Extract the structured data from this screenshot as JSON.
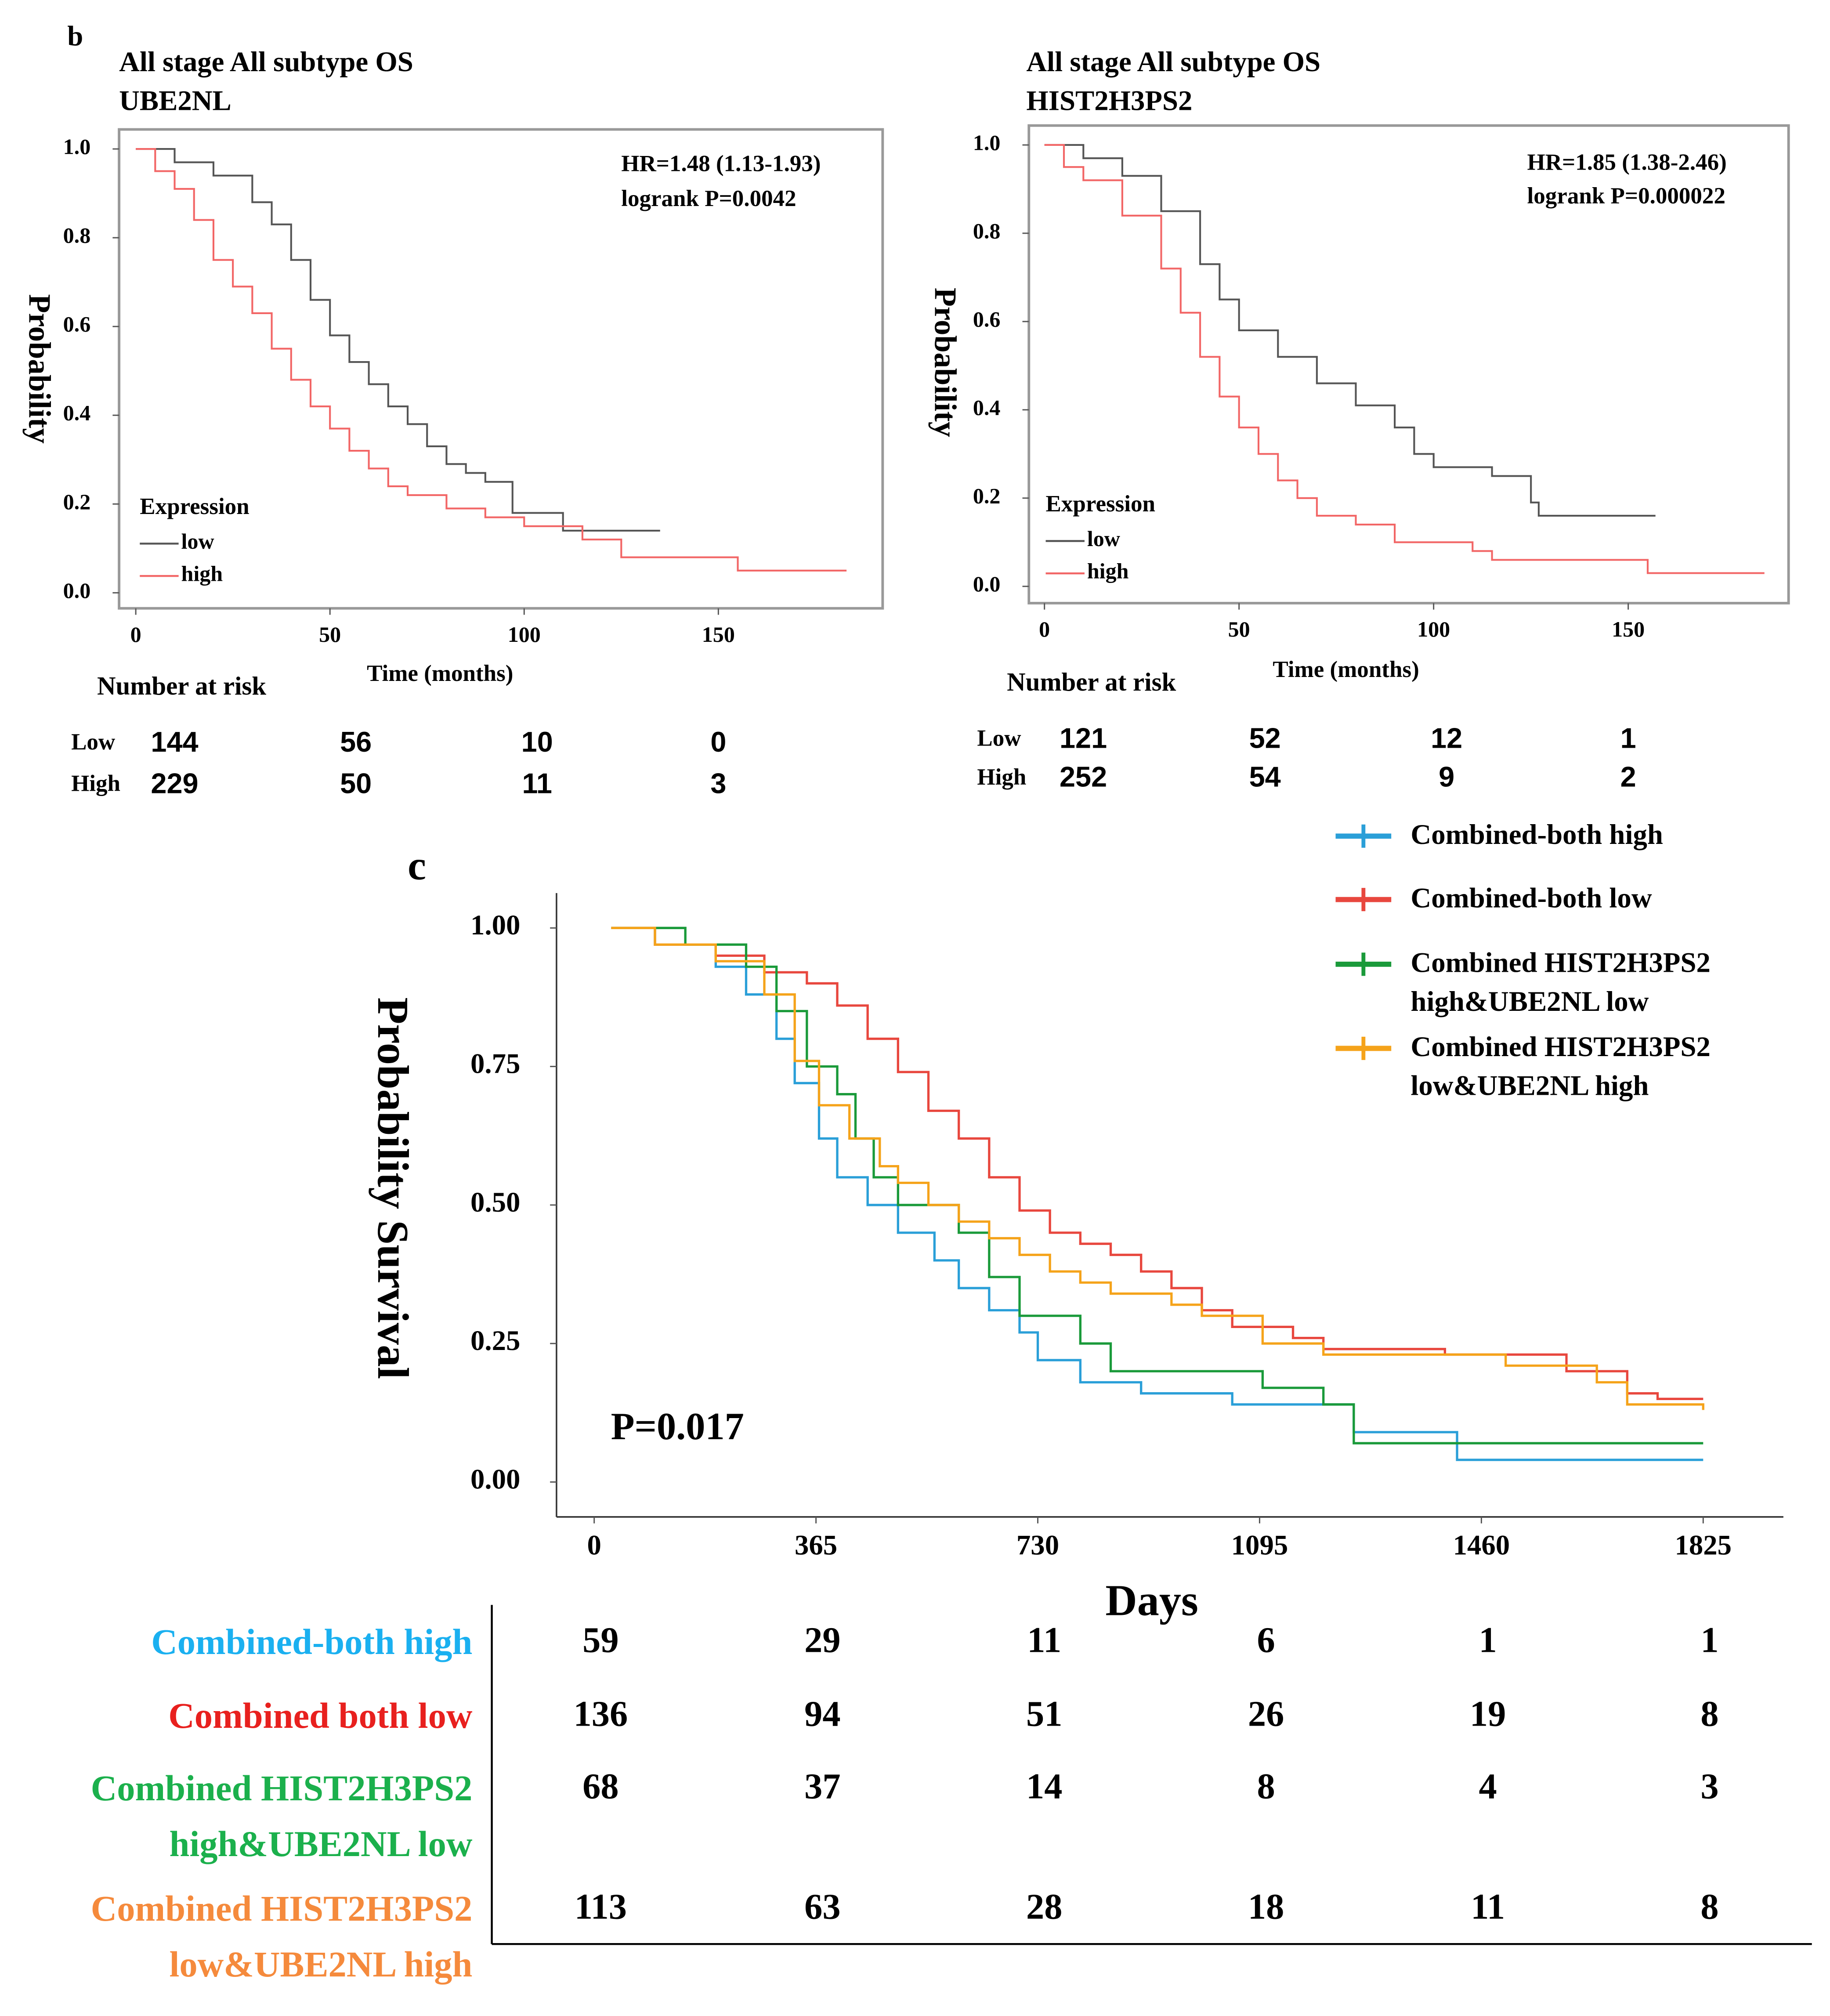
{
  "chart_data": [
    {
      "type": "line",
      "panel": "b",
      "title": "All stage All subtype OS",
      "subtitle": "UBE2NL",
      "annotations": [
        "HR=1.48 (1.13-1.93)",
        "logrank P=0.0042"
      ],
      "xlabel": "Time (months)",
      "ylabel": "Probability",
      "legend_title": "Expression",
      "xlim": [
        -4.3,
        192.3
      ],
      "ylim": [
        -0.035,
        1.044
      ],
      "xticks": [
        0,
        50,
        100,
        150
      ],
      "yticks": [
        {
          "value": 0,
          "label": "0.0"
        },
        {
          "value": 0.2,
          "label": "0.2"
        },
        {
          "value": 0.4,
          "label": "0.4"
        },
        {
          "value": 0.6,
          "label": "0.6"
        },
        {
          "value": 0.8,
          "label": "0.8"
        },
        {
          "value": 1,
          "label": "1.0"
        }
      ],
      "series": [
        {
          "name": "low",
          "color": "#555555",
          "x": [
            0,
            10,
            20,
            30,
            35,
            40,
            45,
            50,
            55,
            60,
            65,
            70,
            75,
            80,
            85,
            90,
            97,
            110,
            135
          ],
          "values": [
            1,
            0.97,
            0.94,
            0.88,
            0.83,
            0.75,
            0.66,
            0.58,
            0.52,
            0.47,
            0.42,
            0.38,
            0.33,
            0.29,
            0.27,
            0.25,
            0.18,
            0.14,
            0.14
          ]
        },
        {
          "name": "high",
          "color": "#f26666",
          "x": [
            0,
            5,
            10,
            15,
            20,
            25,
            30,
            35,
            40,
            45,
            50,
            55,
            60,
            65,
            70,
            80,
            90,
            100,
            115,
            125,
            155,
            183
          ],
          "values": [
            1,
            0.95,
            0.91,
            0.84,
            0.75,
            0.69,
            0.63,
            0.55,
            0.48,
            0.42,
            0.37,
            0.32,
            0.28,
            0.24,
            0.22,
            0.19,
            0.17,
            0.15,
            0.12,
            0.08,
            0.05,
            0.05
          ]
        }
      ],
      "risk_table": {
        "title": "Number at risk",
        "rows": [
          {
            "label": "Low",
            "color": "#000000",
            "values": [
              144,
              56,
              10,
              0
            ]
          },
          {
            "label": "High",
            "color": "#e82020",
            "values": [
              229,
              50,
              11,
              3
            ]
          }
        ]
      }
    },
    {
      "type": "line",
      "title": "All stage All subtype OS",
      "subtitle": "HIST2H3PS2",
      "annotations": [
        "HR=1.85 (1.38-2.46)",
        "logrank P=0.000022"
      ],
      "xlabel": "Time (months)",
      "ylabel": "Probability",
      "legend_title": "Expression",
      "xlim": [
        -4,
        191.2
      ],
      "ylim": [
        -0.038,
        1.044
      ],
      "xticks": [
        0,
        50,
        100,
        150
      ],
      "yticks": [
        {
          "value": 0,
          "label": "0.0"
        },
        {
          "value": 0.2,
          "label": "0.2"
        },
        {
          "value": 0.4,
          "label": "0.4"
        },
        {
          "value": 0.6,
          "label": "0.6"
        },
        {
          "value": 0.8,
          "label": "0.8"
        },
        {
          "value": 1,
          "label": "1.0"
        }
      ],
      "series": [
        {
          "name": "low",
          "color": "#555555",
          "x": [
            0,
            10,
            20,
            30,
            40,
            45,
            50,
            60,
            70,
            80,
            90,
            95,
            100,
            115,
            125,
            127,
            157
          ],
          "values": [
            1,
            0.97,
            0.93,
            0.85,
            0.73,
            0.65,
            0.58,
            0.52,
            0.46,
            0.41,
            0.36,
            0.3,
            0.27,
            0.25,
            0.19,
            0.16,
            0.16
          ]
        },
        {
          "name": "high",
          "color": "#f26666",
          "x": [
            0,
            5,
            10,
            20,
            30,
            35,
            40,
            45,
            50,
            55,
            60,
            65,
            70,
            80,
            90,
            110,
            115,
            155,
            185
          ],
          "values": [
            1,
            0.95,
            0.92,
            0.84,
            0.72,
            0.62,
            0.52,
            0.43,
            0.36,
            0.3,
            0.24,
            0.2,
            0.16,
            0.14,
            0.1,
            0.08,
            0.06,
            0.03,
            0.03
          ]
        }
      ],
      "risk_table": {
        "title": "Number at risk",
        "rows": [
          {
            "label": "Low",
            "color": "#000000",
            "values": [
              121,
              52,
              12,
              1
            ]
          },
          {
            "label": "High",
            "color": "#e82020",
            "values": [
              252,
              54,
              9,
              2
            ]
          }
        ]
      }
    },
    {
      "type": "line",
      "panel": "c",
      "annotations": [
        "P=0.017"
      ],
      "xlabel": "Days",
      "ylabel": "Probability Survival",
      "xlim": [
        -62,
        1957
      ],
      "ylim": [
        -0.063,
        1.063
      ],
      "xticks": [
        0,
        365,
        730,
        1095,
        1460,
        1825
      ],
      "yticks": [
        {
          "value": 0,
          "label": "0.00"
        },
        {
          "value": 0.25,
          "label": "0.25"
        },
        {
          "value": 0.5,
          "label": "0.50"
        },
        {
          "value": 0.75,
          "label": "0.75"
        },
        {
          "value": 1,
          "label": "1.00"
        }
      ],
      "series": [
        {
          "name": "Combined-both high",
          "color": "#2a9fd8",
          "x": [
            28,
            100,
            200,
            250,
            300,
            330,
            370,
            400,
            450,
            500,
            560,
            600,
            650,
            700,
            730,
            800,
            900,
            1050,
            1250,
            1400,
            1420,
            1825
          ],
          "values": [
            1,
            0.97,
            0.93,
            0.88,
            0.8,
            0.72,
            0.62,
            0.55,
            0.5,
            0.45,
            0.4,
            0.35,
            0.31,
            0.27,
            0.22,
            0.18,
            0.16,
            0.14,
            0.09,
            0.09,
            0.04,
            0.04
          ]
        },
        {
          "name": "Combined-both low",
          "color": "#e8473e",
          "x": [
            28,
            100,
            200,
            280,
            350,
            400,
            450,
            500,
            550,
            600,
            650,
            700,
            750,
            800,
            850,
            900,
            950,
            1000,
            1050,
            1150,
            1200,
            1400,
            1600,
            1700,
            1750,
            1825
          ],
          "values": [
            1,
            0.97,
            0.95,
            0.92,
            0.9,
            0.86,
            0.8,
            0.74,
            0.67,
            0.62,
            0.55,
            0.49,
            0.45,
            0.43,
            0.41,
            0.38,
            0.35,
            0.31,
            0.28,
            0.26,
            0.24,
            0.23,
            0.2,
            0.16,
            0.15,
            0.15
          ]
        },
        {
          "name": "Combined HIST2H3PS2 high&UBE2NL low",
          "color": "#1a9a3a",
          "x": [
            28,
            150,
            250,
            300,
            350,
            400,
            430,
            460,
            500,
            600,
            650,
            700,
            800,
            850,
            1000,
            1100,
            1200,
            1250,
            1825
          ],
          "values": [
            1,
            0.97,
            0.93,
            0.85,
            0.75,
            0.7,
            0.62,
            0.55,
            0.5,
            0.45,
            0.37,
            0.3,
            0.25,
            0.2,
            0.2,
            0.17,
            0.14,
            0.07,
            0.07
          ]
        },
        {
          "name": "Combined HIST2H3PS2 low&UBE2NL high",
          "color": "#f5a31a",
          "x": [
            28,
            100,
            200,
            280,
            330,
            370,
            420,
            470,
            500,
            550,
            600,
            650,
            700,
            750,
            800,
            850,
            950,
            1000,
            1100,
            1200,
            1400,
            1500,
            1650,
            1700,
            1825
          ],
          "values": [
            1,
            0.97,
            0.94,
            0.88,
            0.76,
            0.68,
            0.62,
            0.57,
            0.54,
            0.5,
            0.47,
            0.44,
            0.41,
            0.38,
            0.36,
            0.34,
            0.32,
            0.3,
            0.25,
            0.23,
            0.23,
            0.21,
            0.18,
            0.14,
            0.13
          ]
        }
      ],
      "risk_table": {
        "rows": [
          {
            "label": "Combined-both high",
            "color": "#1ab0f0",
            "values": [
              59,
              29,
              11,
              6,
              1,
              1
            ]
          },
          {
            "label": "Combined both low",
            "color": "#e8201e",
            "values": [
              136,
              94,
              51,
              26,
              19,
              8
            ]
          },
          {
            "label": "Combined HIST2H3PS2 high&UBE2NL low",
            "color": "#1bb04c",
            "values": [
              68,
              37,
              14,
              8,
              4,
              3
            ]
          },
          {
            "label": "Combined HIST2H3PS2 low&UBE2NL high",
            "color": "#f58a3c",
            "values": [
              113,
              63,
              28,
              18,
              11,
              8
            ]
          }
        ]
      }
    }
  ]
}
